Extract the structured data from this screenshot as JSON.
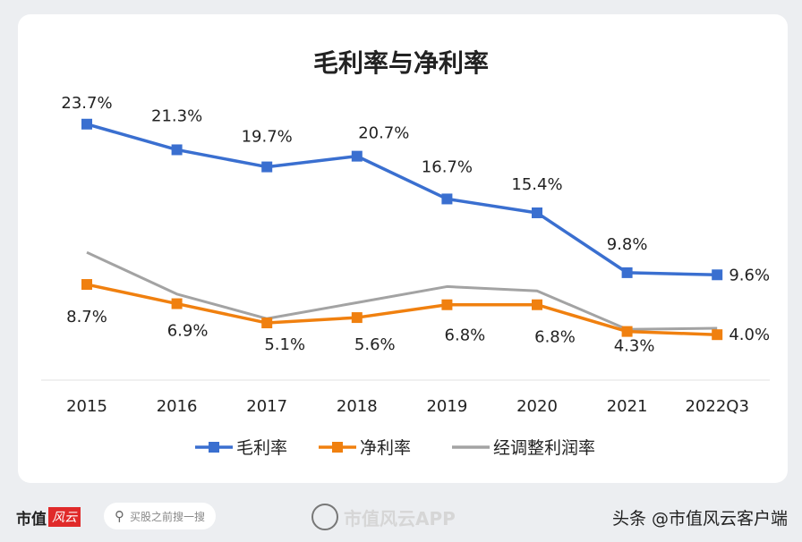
{
  "chart_data": {
    "type": "line",
    "title": "毛利率与净利率",
    "categories": [
      "2015",
      "2016",
      "2017",
      "2018",
      "2019",
      "2020",
      "2021",
      "2022Q3"
    ],
    "series": [
      {
        "name": "毛利率",
        "color": "#3a6fd0",
        "marker": "square",
        "values": [
          23.7,
          21.3,
          19.7,
          20.7,
          16.7,
          15.4,
          9.8,
          9.6
        ],
        "labels": [
          "23.7%",
          "21.3%",
          "19.7%",
          "20.7%",
          "16.7%",
          "15.4%",
          "9.8%",
          "9.6%"
        ]
      },
      {
        "name": "净利率",
        "color": "#f0800f",
        "marker": "square",
        "values": [
          8.7,
          6.9,
          5.1,
          5.6,
          6.8,
          6.8,
          4.3,
          4.0
        ],
        "labels": [
          "8.7%",
          "6.9%",
          "5.1%",
          "5.6%",
          "6.8%",
          "6.8%",
          "4.3%",
          "4.0%"
        ]
      },
      {
        "name": "经调整利润率",
        "color": "#a3a3a3",
        "marker": "none",
        "values": [
          11.7,
          7.8,
          5.5,
          7.0,
          8.5,
          8.1,
          4.5,
          4.6
        ]
      }
    ],
    "units": "%",
    "grid": false,
    "legend": "bottom"
  },
  "footer": {
    "logo_text": "市值",
    "logo_badge": "风云",
    "search_placeholder": "买股之前搜一搜",
    "app_watermark": "市值风云APP",
    "source": "头条 @市值风云客户端"
  }
}
